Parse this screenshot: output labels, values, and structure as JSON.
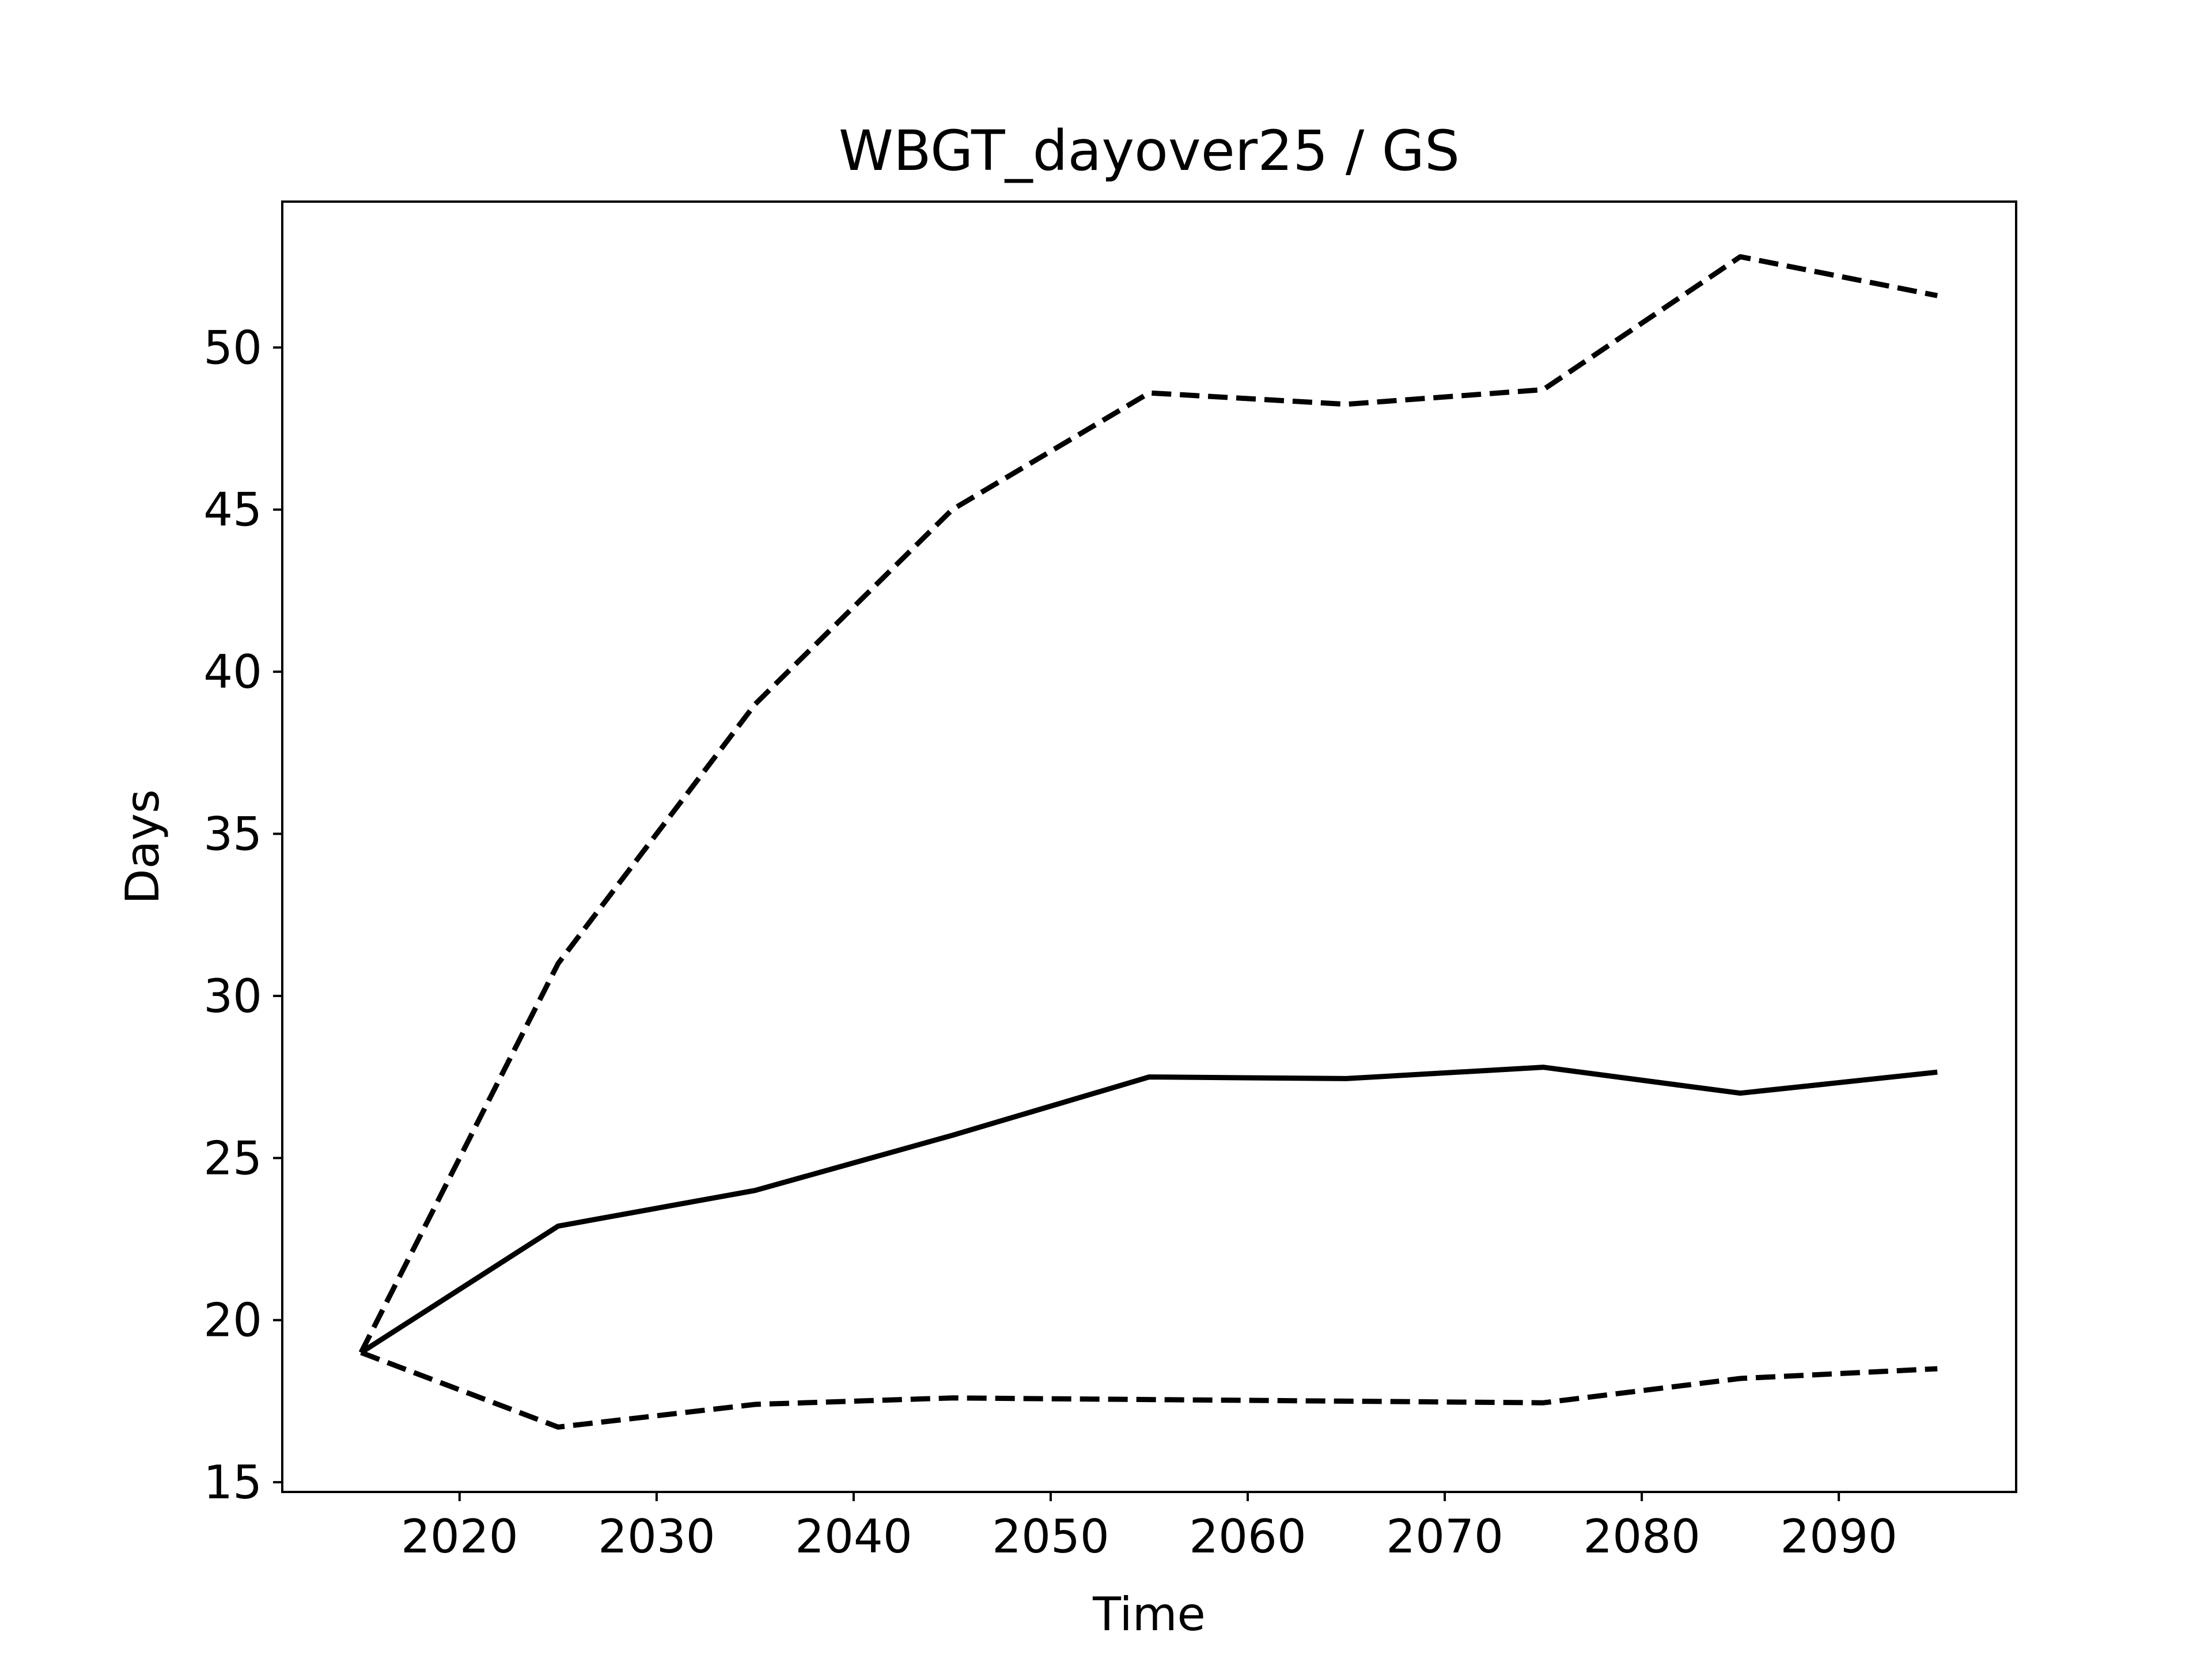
{
  "chart_data": {
    "type": "line",
    "title": "WBGT_dayover25 / GS",
    "xlabel": "Time",
    "ylabel": "Days",
    "xlim": [
      2011,
      2099
    ],
    "ylim": [
      14.7,
      54.5
    ],
    "xticks": [
      2020,
      2030,
      2040,
      2050,
      2060,
      2070,
      2080,
      2090
    ],
    "yticks": [
      15,
      20,
      25,
      30,
      35,
      40,
      45,
      50
    ],
    "grid": false,
    "x": [
      2015,
      2025,
      2035,
      2045,
      2055,
      2065,
      2075,
      2085,
      2095
    ],
    "series": [
      {
        "style": "dashed",
        "color": "#000000",
        "values": [
          19.0,
          31.0,
          39.0,
          45.0,
          48.6,
          48.25,
          48.7,
          52.8,
          51.6
        ]
      },
      {
        "style": "solid",
        "color": "#000000",
        "values": [
          19.0,
          22.9,
          24.0,
          25.7,
          27.5,
          27.45,
          27.8,
          27.0,
          27.65
        ]
      },
      {
        "style": "dashed",
        "color": "#000000",
        "values": [
          19.0,
          16.7,
          17.4,
          17.6,
          17.55,
          17.5,
          17.45,
          18.2,
          18.5
        ]
      }
    ]
  }
}
